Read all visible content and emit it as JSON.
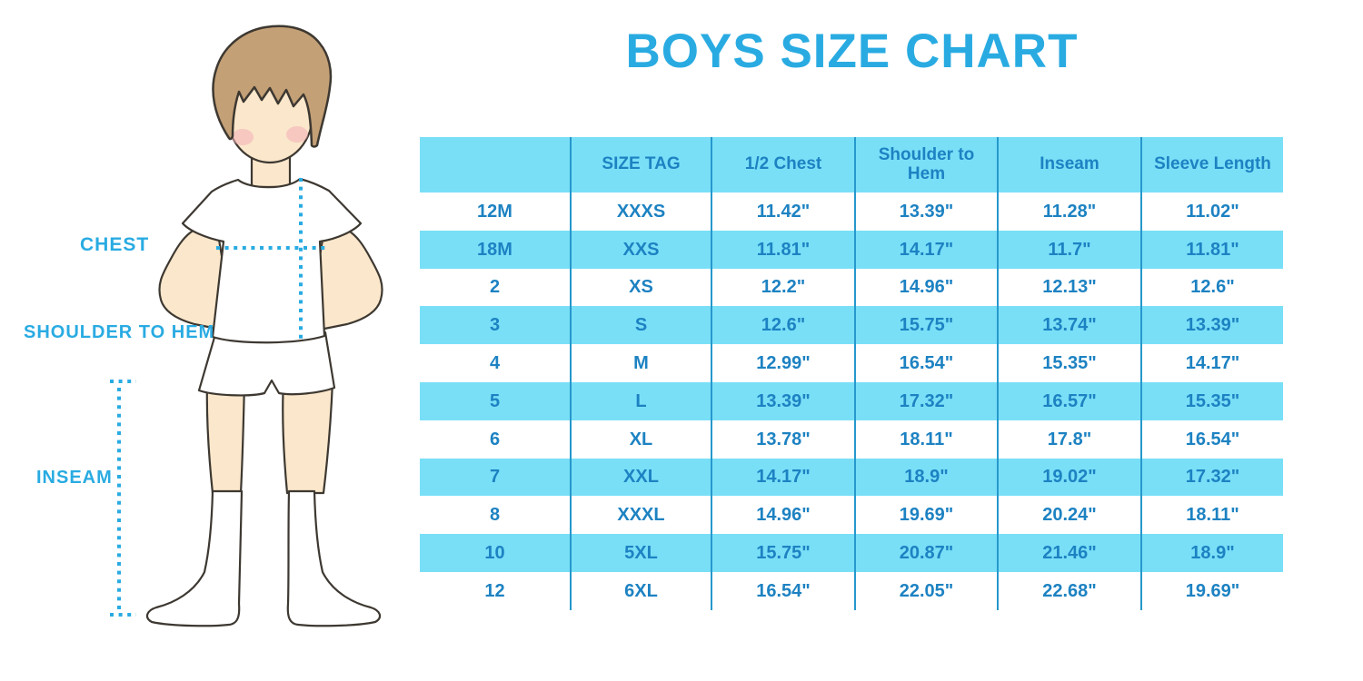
{
  "title": "BOYS SIZE CHART",
  "figure": {
    "labels": {
      "chest": "CHEST",
      "shoulder_to_hem": "SHOULDER TO HEM",
      "inseam": "INSEAM"
    }
  },
  "colors": {
    "accent_blue": "#29ABE2",
    "row_band_blue": "#79DFF7",
    "column_divider_blue": "#2598CC",
    "table_text_blue": "#1D82C2",
    "hair_brown": "#C4A076",
    "skin_tone": "#FBE7CB",
    "cheek_blush": "#F2AEB8",
    "illustration_outline": "#3D3831"
  },
  "chart_data": {
    "type": "table",
    "title": "BOYS SIZE CHART",
    "columns": [
      "",
      "SIZE TAG",
      "1/2 Chest",
      "Shoulder to Hem",
      "Inseam",
      "Sleeve Length"
    ],
    "rows": [
      [
        "12M",
        "XXXS",
        "11.42\"",
        "13.39\"",
        "11.28\"",
        "11.02\""
      ],
      [
        "18M",
        "XXS",
        "11.81\"",
        "14.17\"",
        "11.7\"",
        "11.81\""
      ],
      [
        "2",
        "XS",
        "12.2\"",
        "14.96\"",
        "12.13\"",
        "12.6\""
      ],
      [
        "3",
        "S",
        "12.6\"",
        "15.75\"",
        "13.74\"",
        "13.39\""
      ],
      [
        "4",
        "M",
        "12.99\"",
        "16.54\"",
        "15.35\"",
        "14.17\""
      ],
      [
        "5",
        "L",
        "13.39\"",
        "17.32\"",
        "16.57\"",
        "15.35\""
      ],
      [
        "6",
        "XL",
        "13.78\"",
        "18.11\"",
        "17.8\"",
        "16.54\""
      ],
      [
        "7",
        "XXL",
        "14.17\"",
        "18.9\"",
        "19.02\"",
        "17.32\""
      ],
      [
        "8",
        "XXXL",
        "14.96\"",
        "19.69\"",
        "20.24\"",
        "18.11\""
      ],
      [
        "10",
        "5XL",
        "15.75\"",
        "20.87\"",
        "21.46\"",
        "18.9\""
      ],
      [
        "12",
        "6XL",
        "16.54\"",
        "22.05\"",
        "22.68\"",
        "19.69\""
      ]
    ],
    "row_striping": "header and every second data row filled light blue",
    "legend_position": "none",
    "grid": "vertical column dividers only"
  }
}
